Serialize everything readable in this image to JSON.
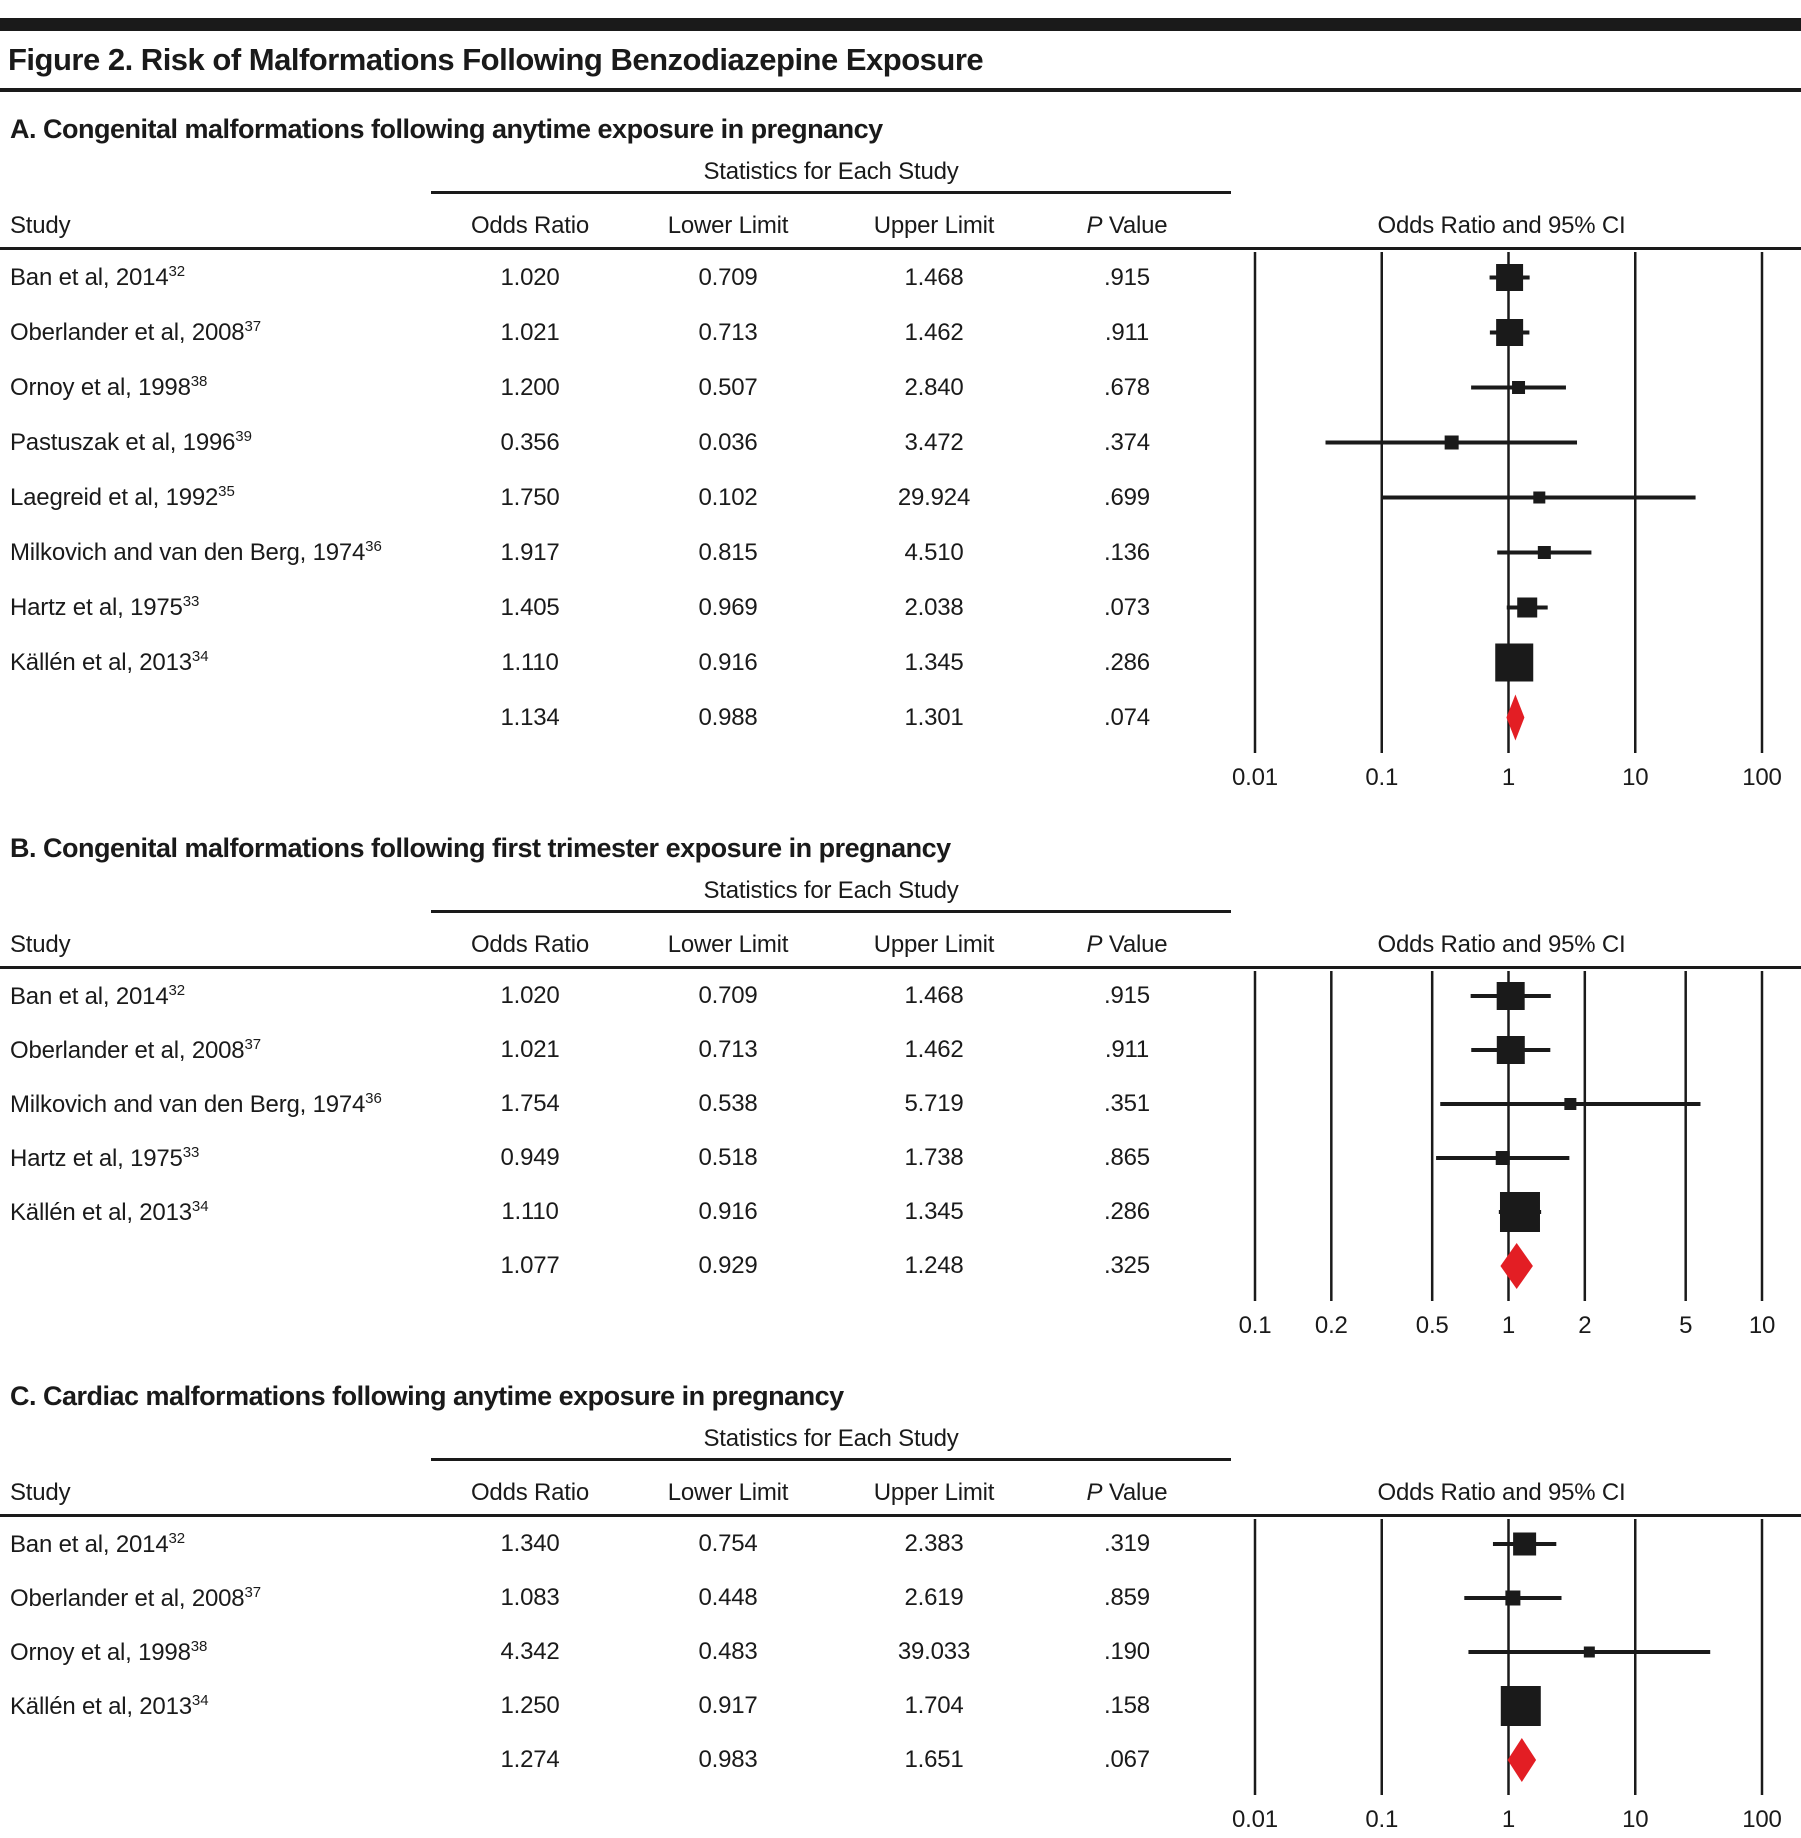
{
  "figure": {
    "title": "Figure 2. Risk of Malformations Following Benzodiazepine Exposure",
    "colors": {
      "ink": "#1a1a1a",
      "summary_diamond": "#e31e24"
    }
  },
  "chart_data": [
    {
      "type": "forest",
      "heading": "A. Congenital malformations following anytime exposure in pregnancy",
      "stats_label": "Statistics for Each Study",
      "columns": {
        "study": "Study",
        "odds_ratio": "Odds Ratio",
        "lower_limit": "Lower Limit",
        "upper_limit": "Upper Limit",
        "p_value_italic": "P",
        "p_value_rest": " Value"
      },
      "plot_label": "Odds Ratio and 95% CI",
      "axis_scale": "log",
      "ticks": [
        0.01,
        0.1,
        1,
        10,
        100
      ],
      "rows": [
        {
          "study": "Ban et al, 2014",
          "ref": "32",
          "or": "1.020",
          "lower": "0.709",
          "upper": "1.468",
          "p": ".915",
          "size": 27
        },
        {
          "study": "Oberlander et al, 2008",
          "ref": "37",
          "or": "1.021",
          "lower": "0.713",
          "upper": "1.462",
          "p": ".911",
          "size": 27
        },
        {
          "study": "Ornoy et al, 1998",
          "ref": "38",
          "or": "1.200",
          "lower": "0.507",
          "upper": "2.840",
          "p": ".678",
          "size": 13
        },
        {
          "study": "Pastuszak et al, 1996",
          "ref": "39",
          "or": "0.356",
          "lower": "0.036",
          "upper": "3.472",
          "p": ".374",
          "size": 14
        },
        {
          "study": "Laegreid et al, 1992",
          "ref": "35",
          "or": "1.750",
          "lower": "0.102",
          "upper": "29.924",
          "p": ".699",
          "size": 12
        },
        {
          "study": "Milkovich and van den Berg, 1974",
          "ref": "36",
          "or": "1.917",
          "lower": "0.815",
          "upper": "4.510",
          "p": ".136",
          "size": 13
        },
        {
          "study": "Hartz et al, 1975",
          "ref": "33",
          "or": "1.405",
          "lower": "0.969",
          "upper": "2.038",
          "p": ".073",
          "size": 20
        },
        {
          "study": "Källén et al, 2013",
          "ref": "34",
          "or": "1.110",
          "lower": "0.916",
          "upper": "1.345",
          "p": ".286",
          "size": 38
        },
        {
          "study": "",
          "ref": "",
          "or": "1.134",
          "lower": "0.988",
          "upper": "1.301",
          "p": ".074",
          "summary": true,
          "diamond_height": 46
        }
      ]
    },
    {
      "type": "forest",
      "heading": "B. Congenital malformations following first trimester exposure in pregnancy",
      "stats_label": "Statistics for Each Study",
      "columns": {
        "study": "Study",
        "odds_ratio": "Odds Ratio",
        "lower_limit": "Lower Limit",
        "upper_limit": "Upper Limit",
        "p_value_italic": "P",
        "p_value_rest": " Value"
      },
      "plot_label": "Odds Ratio and 95% CI",
      "axis_scale": "log",
      "ticks": [
        0.1,
        0.2,
        0.5,
        1,
        2,
        5,
        10
      ],
      "rows": [
        {
          "study": "Ban et al, 2014",
          "ref": "32",
          "or": "1.020",
          "lower": "0.709",
          "upper": "1.468",
          "p": ".915",
          "size": 28
        },
        {
          "study": "Oberlander et al, 2008",
          "ref": "37",
          "or": "1.021",
          "lower": "0.713",
          "upper": "1.462",
          "p": ".911",
          "size": 28
        },
        {
          "study": "Milkovich and van den Berg, 1974",
          "ref": "36",
          "or": "1.754",
          "lower": "0.538",
          "upper": "5.719",
          "p": ".351",
          "size": 12
        },
        {
          "study": "Hartz et al, 1975",
          "ref": "33",
          "or": "0.949",
          "lower": "0.518",
          "upper": "1.738",
          "p": ".865",
          "size": 14
        },
        {
          "study": "Källén et al, 2013",
          "ref": "34",
          "or": "1.110",
          "lower": "0.916",
          "upper": "1.345",
          "p": ".286",
          "size": 40
        },
        {
          "study": "",
          "ref": "",
          "or": "1.077",
          "lower": "0.929",
          "upper": "1.248",
          "p": ".325",
          "summary": true,
          "diamond_height": 46
        }
      ]
    },
    {
      "type": "forest",
      "heading": "C. Cardiac malformations following anytime exposure in pregnancy",
      "stats_label": "Statistics for Each Study",
      "columns": {
        "study": "Study",
        "odds_ratio": "Odds Ratio",
        "lower_limit": "Lower Limit",
        "upper_limit": "Upper Limit",
        "p_value_italic": "P",
        "p_value_rest": " Value"
      },
      "plot_label": "Odds Ratio and 95% CI",
      "axis_scale": "log",
      "ticks": [
        0.01,
        0.1,
        1,
        10,
        100
      ],
      "rows": [
        {
          "study": "Ban et al, 2014",
          "ref": "32",
          "or": "1.340",
          "lower": "0.754",
          "upper": "2.383",
          "p": ".319",
          "size": 23
        },
        {
          "study": "Oberlander et al, 2008",
          "ref": "37",
          "or": "1.083",
          "lower": "0.448",
          "upper": "2.619",
          "p": ".859",
          "size": 15
        },
        {
          "study": "Ornoy et al, 1998",
          "ref": "38",
          "or": "4.342",
          "lower": "0.483",
          "upper": "39.033",
          "p": ".190",
          "size": 11
        },
        {
          "study": "Källén et al, 2013",
          "ref": "34",
          "or": "1.250",
          "lower": "0.917",
          "upper": "1.704",
          "p": ".158",
          "size": 40
        },
        {
          "study": "",
          "ref": "",
          "or": "1.274",
          "lower": "0.983",
          "upper": "1.651",
          "p": ".067",
          "summary": true,
          "diamond_height": 44
        }
      ]
    }
  ]
}
